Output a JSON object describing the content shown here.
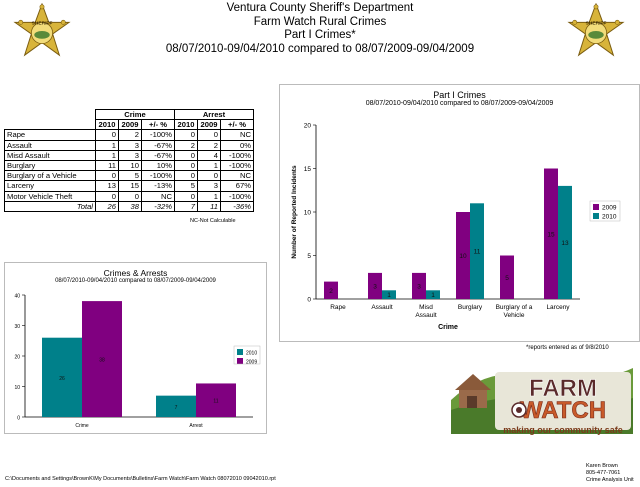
{
  "header": {
    "line1": "Ventura County Sheriff's Department",
    "line2": "Farm Watch Rural Crimes",
    "line3": "Part I Crimes*",
    "line4": "08/07/2010-09/04/2010 compared to 08/07/2009-09/04/2009"
  },
  "badges": {
    "left_icon": "sheriff-star-badge-icon",
    "right_icon": "sheriff-star-badge-icon",
    "text": "SHERIFF"
  },
  "table": {
    "group_headers": [
      "Crime",
      "Arrest"
    ],
    "sub_headers": [
      "2010",
      "2009",
      "+/- %",
      "2010",
      "2009",
      "+/- %"
    ],
    "rows": [
      {
        "label": "Rape",
        "c2010": "0",
        "c2009": "2",
        "cpct": "-100%",
        "a2010": "0",
        "a2009": "0",
        "apct": "NC"
      },
      {
        "label": "Assault",
        "c2010": "1",
        "c2009": "3",
        "cpct": "-67%",
        "a2010": "2",
        "a2009": "2",
        "apct": "0%"
      },
      {
        "label": "Misd  Assault",
        "c2010": "1",
        "c2009": "3",
        "cpct": "-67%",
        "a2010": "0",
        "a2009": "4",
        "apct": "-100%"
      },
      {
        "label": "Burglary",
        "c2010": "11",
        "c2009": "10",
        "cpct": "10%",
        "a2010": "0",
        "a2009": "1",
        "apct": "-100%"
      },
      {
        "label": "Burglary of a Vehicle",
        "c2010": "0",
        "c2009": "5",
        "cpct": "-100%",
        "a2010": "0",
        "a2009": "0",
        "apct": "NC"
      },
      {
        "label": "Larceny",
        "c2010": "13",
        "c2009": "15",
        "cpct": "-13%",
        "a2010": "5",
        "a2009": "3",
        "apct": "67%"
      },
      {
        "label": "Motor Vehicle Theft",
        "c2010": "0",
        "c2009": "0",
        "cpct": "NC",
        "a2010": "0",
        "a2009": "1",
        "apct": "-100%"
      }
    ],
    "total": {
      "label": "Total",
      "c2010": "26",
      "c2009": "38",
      "cpct": "-32%",
      "a2010": "7",
      "a2009": "11",
      "apct": "-36%"
    },
    "note": "NC-Not Calculable"
  },
  "chart_data": [
    {
      "type": "bar",
      "title": "Part I Crimes",
      "subtitle": "08/07/2010-09/04/2010 compared to 08/07/2009-09/04/2009",
      "xlabel": "Crime",
      "ylabel": "Number of Reported Incidents",
      "ylim": [
        0,
        20
      ],
      "yticks": [
        "0",
        "5",
        "10",
        "15",
        "20"
      ],
      "categories": [
        "Rape",
        "Assault",
        "Misd Assault",
        "Burglary",
        "Burglary of a Vehicle",
        "Larceny"
      ],
      "category_lines": [
        [
          "Rape"
        ],
        [
          "Assault"
        ],
        [
          "Misd",
          "Assault"
        ],
        [
          "Burglary"
        ],
        [
          "Burglary of a",
          "Vehicle"
        ],
        [
          "Larceny"
        ]
      ],
      "series": [
        {
          "name": "2009",
          "color": "#800080",
          "values": [
            2,
            3,
            3,
            10,
            5,
            15
          ]
        },
        {
          "name": "2010",
          "color": "#00808a",
          "values": [
            0,
            1,
            1,
            11,
            0,
            13
          ]
        }
      ],
      "legend": "right",
      "grid": false
    },
    {
      "type": "bar",
      "title": "Crimes & Arrests",
      "subtitle": "08/07/2010-09/04/2010 compared to 08/07/2009-09/04/2009",
      "ylim": [
        0,
        40
      ],
      "yticks": [
        "0",
        "10",
        "20",
        "30",
        "40"
      ],
      "categories": [
        "Crime",
        "Arrest"
      ],
      "series": [
        {
          "name": "2010",
          "color": "#00808a",
          "values": [
            26,
            7
          ]
        },
        {
          "name": "2009",
          "color": "#800080",
          "values": [
            38,
            11
          ]
        }
      ],
      "legend": "right",
      "grid": false
    }
  ],
  "reports_note": "*reports entered as of 9/8/2010",
  "logo": {
    "line1": "FARM",
    "line2": "WATCH",
    "tagline": "making our community safe"
  },
  "footer": {
    "path": "C:\\Documents and Settings\\BrownK\\My Documents\\Bulletins\\Farm Watch\\Farm Watch 08072010 09042010.rpt",
    "contact_name": "Karen Brown",
    "contact_phone": "805-477-7061",
    "contact_unit": "Crime Analysis Unit"
  }
}
